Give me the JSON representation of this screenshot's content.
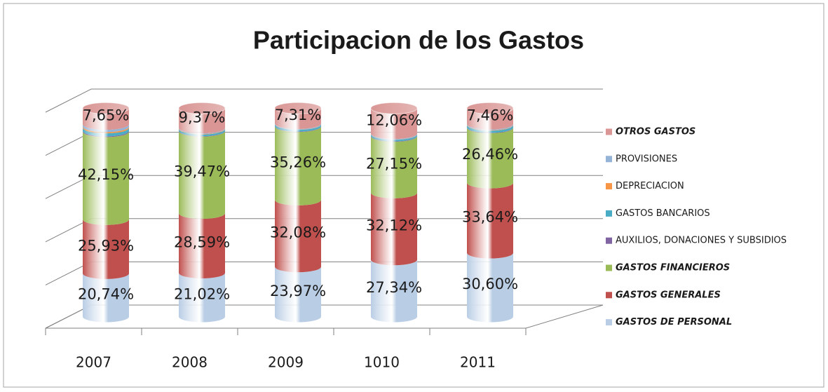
{
  "chart_data": {
    "type": "bar",
    "stacked": true,
    "shape": "cylinder",
    "title": "Participacion de los Gastos",
    "categories": [
      "2007",
      "2008",
      "2009",
      "1010",
      "2011"
    ],
    "ylim": [
      0,
      100
    ],
    "yticks": [
      0,
      20,
      40,
      60,
      80,
      100
    ],
    "grid": true,
    "legend": "right",
    "series": [
      {
        "name": "GASTOS DE PERSONAL",
        "color": "#b9cde5",
        "values": [
          20.74,
          21.02,
          23.97,
          27.34,
          30.6
        ],
        "value_labels": [
          "20,74%",
          "21,02%",
          "23,97%",
          "27,34%",
          "30,60%"
        ]
      },
      {
        "name": "GASTOS GENERALES",
        "color": "#c0504d",
        "values": [
          25.93,
          28.59,
          32.08,
          32.12,
          33.64
        ],
        "value_labels": [
          "25,93%",
          "28,59%",
          "32,08%",
          "32,12%",
          "33,64%"
        ]
      },
      {
        "name": "GASTOS FINANCIEROS",
        "color": "#9bbb59",
        "values": [
          42.15,
          39.47,
          35.26,
          27.15,
          26.46
        ],
        "value_labels": [
          "42,15%",
          "39,47%",
          "35,26%",
          "27,15%",
          "26,46%"
        ]
      },
      {
        "name": "AUXILIOS, DONACIONES Y SUBSIDIOS",
        "color": "#8064a2",
        "values": [
          0.4,
          0.2,
          0.2,
          0.2,
          0.2
        ]
      },
      {
        "name": "GASTOS BANCARIOS",
        "color": "#4bacc6",
        "values": [
          1.4,
          0.8,
          0.8,
          0.7,
          1.0
        ]
      },
      {
        "name": "DEPRECIACION",
        "color": "#f79646",
        "values": [
          0.6,
          0.2,
          0.1,
          0.1,
          0.2
        ]
      },
      {
        "name": "PROVISIONES",
        "color": "#95b3d7",
        "values": [
          1.1,
          0.3,
          0.3,
          0.3,
          0.4
        ]
      },
      {
        "name": "OTROS GASTOS",
        "color": "#d99694",
        "values": [
          7.65,
          9.37,
          7.31,
          12.06,
          7.46
        ],
        "value_labels": [
          "7,65%",
          "9,37%",
          "7,31%",
          "12,06%",
          "7,46%"
        ]
      }
    ]
  }
}
